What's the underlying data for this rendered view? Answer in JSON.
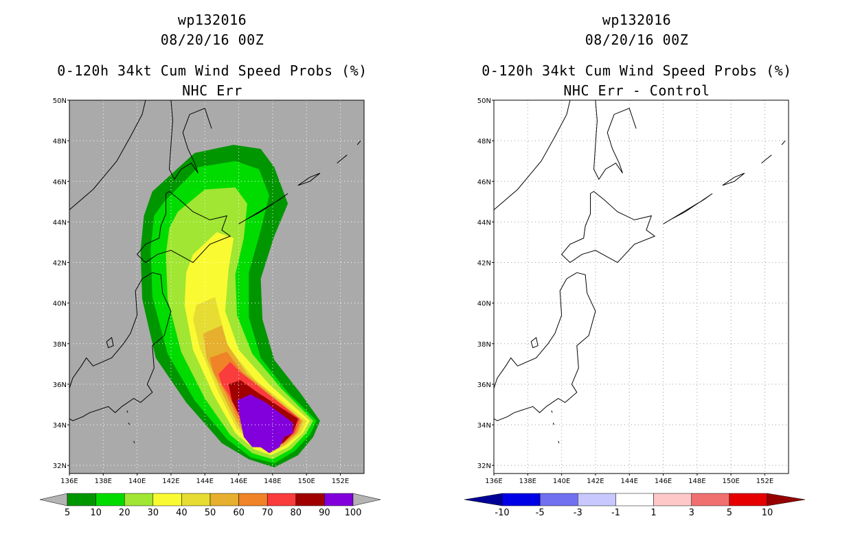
{
  "left_panel": {
    "storm_id": "wp132016",
    "datetime": "08/20/16 00Z",
    "product": "0-120h 34kt Cum Wind Speed Probs (%)",
    "subtitle": "NHC Err",
    "colorbar": {
      "colors": [
        "#009600",
        "#00dc00",
        "#a0e632",
        "#fafa32",
        "#e6dc32",
        "#e6af2d",
        "#f08228",
        "#fa3c3c",
        "#a00000",
        "#8200dc"
      ],
      "labels": [
        "5",
        "10",
        "20",
        "30",
        "40",
        "50",
        "60",
        "70",
        "80",
        "90",
        "100"
      ],
      "over_color": "#b4b4b4",
      "under_color": "#b4b4b4"
    },
    "background": "#aaaaaa"
  },
  "right_panel": {
    "storm_id": "wp132016",
    "datetime": "08/20/16 00Z",
    "product": "0-120h 34kt Cum Wind Speed Probs (%)",
    "subtitle": "NHC Err - Control",
    "colorbar": {
      "colors": [
        "#0000e6",
        "#7070f0",
        "#c8c8ff",
        "#ffffff",
        "#ffc8c8",
        "#f07070",
        "#e60000"
      ],
      "labels": [
        "-10",
        "-5",
        "-3",
        "-1",
        "1",
        "3",
        "5",
        "10"
      ],
      "under_color": "#000096",
      "over_color": "#960000"
    },
    "background": "#ffffff"
  },
  "axes": {
    "lon_labels": [
      "136E",
      "138E",
      "140E",
      "142E",
      "144E",
      "146E",
      "148E",
      "150E",
      "152E"
    ],
    "lat_labels": [
      "50N",
      "48N",
      "46N",
      "44N",
      "42N",
      "40N",
      "38N",
      "36N",
      "34N",
      "32N"
    ]
  }
}
